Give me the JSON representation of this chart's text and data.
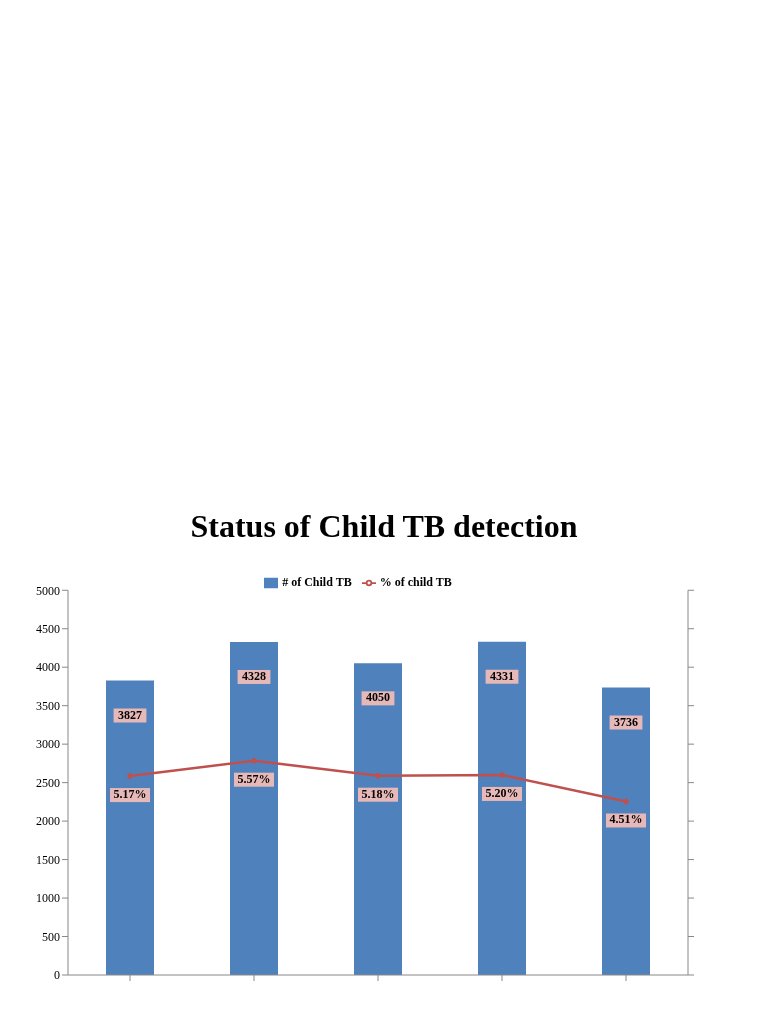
{
  "chart_data": {
    "type": "bar",
    "title": "Status of Child TB detection",
    "categories": [
      null,
      null,
      null,
      null,
      null
    ],
    "series": [
      {
        "name": "# of Child TB",
        "color": "#4f81bd",
        "values": [
          3827,
          4328,
          4050,
          4331,
          3736
        ],
        "value_labels": [
          "3827",
          "4328",
          "4050",
          "4331",
          "3736"
        ]
      },
      {
        "name": "% of child TB",
        "type": "line",
        "axis": "y2",
        "color": "#c0504d",
        "marker": "diamond",
        "values": [
          5.17,
          5.57,
          5.18,
          5.2,
          4.51
        ],
        "value_labels": [
          "5.17%",
          "5.57%",
          "5.18%",
          "5.20%",
          "4.51%"
        ]
      }
    ],
    "ylim": [
      0,
      5000
    ],
    "yticks": [
      0,
      500,
      1000,
      1500,
      2000,
      2500,
      3000,
      3500,
      4000,
      4500,
      5000
    ],
    "y2lim": [
      0,
      10
    ],
    "y2ticks": [
      {
        "value": 0,
        "label": null
      },
      {
        "value": 1,
        "label": null
      },
      {
        "value": 2,
        "label": null
      },
      {
        "value": 3,
        "label": null
      },
      {
        "value": 4,
        "label": null
      },
      {
        "value": 5,
        "label": null
      },
      {
        "value": 6,
        "label": null
      },
      {
        "value": 7,
        "label": null
      },
      {
        "value": 8,
        "label": null
      },
      {
        "value": 9,
        "label": null
      },
      {
        "value": 10,
        "label": null
      }
    ],
    "legend": "top",
    "grid": false
  }
}
